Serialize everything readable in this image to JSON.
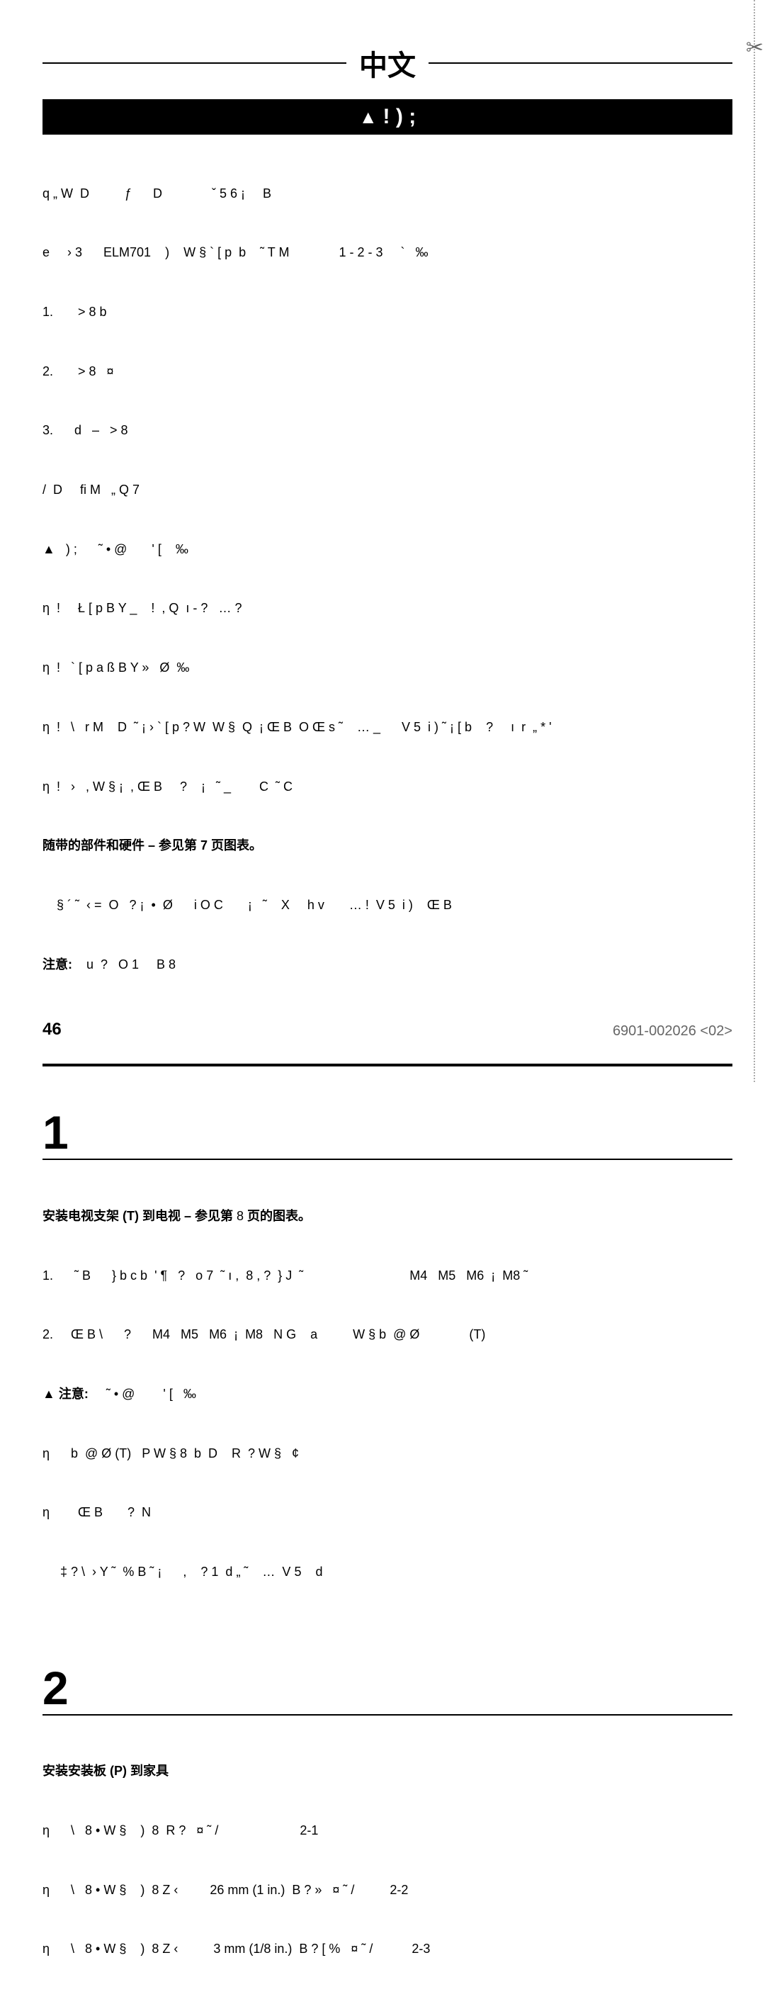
{
  "header": {
    "title": "中文"
  },
  "warningBar": {
    "text": "! ) ;"
  },
  "mainBlock": {
    "line1": "q „ W  D          ƒ      D              ˇ 5 6 ¡     B",
    "line2": "e     › 3      ELM701    )    W § ` [ p  b    ˜ T M              1 - 2 - 3     `   ‰",
    "line3": "1.       > 8 b",
    "line4": "2.       > 8   ¤",
    "line5": "3.      d   –   > 8",
    "line6": "/  D     fi M   „ Q 7",
    "line7": "▲   ) ;      ˜ • @       ' [    ‰",
    "line8": "η  !     Ł [ p B Y _    !  , Q  ı - ?   … ?",
    "line9": "η  !   ` [ p a ß B Y »   Ø  ‰",
    "line10": "η  !   \\   r M    D  ˜ ¡ › ` [ p ? W  W §  Q  ¡ Œ B  O Œ s ˜    … _      V 5  i ) ˜ ¡ [ b    ?     ı  r  „ * '",
    "line11": "η  !   ›   , W § ¡  , Œ B     ?    ¡   ˜ _        C  ˜ C",
    "boldA": "随带的部件和硬件 – 参见第 7 页图表。",
    "line12": "    § ´ ˜  ‹ =  O   ? ¡  •  Ø      i O C       ¡   ˜    X     h v       … !  V 5  i )    Œ B",
    "boldB": "注意:",
    "line13": "    u  ?   O 1     B 8"
  },
  "step1": {
    "num": "1",
    "title": "安装电视支架 (T) 到电视 – 参见第 ",
    "titlePage": "8",
    "titleEnd": " 页的图表。",
    "s1l1": "1.      ˜ B      } b c b  ' ¶   ?   o 7  ˜ ı ,  8 , ?  } J  ˜                              M4   M5   M6  ¡  M8 ˜",
    "s1l2": "2.     Œ B \\      ?      M4   M5   M6  ¡  M8   N G    a          W § b  @ Ø              (T)",
    "cautionBold": "▲ 注意:",
    "s1l3": "     ˜ • @        ' [   ‰",
    "s1l4": "η      b  @ Ø (T)   P W § 8  b  D    R  ? W §   ¢",
    "s1l5": "η        Œ B       ?  N",
    "s1l6": "     ‡ ? \\  › Y ˜  % B ˜ ¡      ,    ? 1  d „ ˜    …  V 5    d"
  },
  "step2": {
    "num": "2",
    "title": "安装安装板 (P) 到家具",
    "s2l1": "η      \\   8 • W §    )  8  R ?   ¤ ˜ /                       2-1",
    "s2l2": "η      \\   8 • W §    )  8 Z ‹         26 mm (1 in.)  B ? »   ¤ ˜ /          2-2",
    "s2l3": "η      \\   8 • W §    )  8 Z ‹          3 mm (1/8 in.)  B ? [ %   ¤ ˜ /           2-3"
  },
  "footer": {
    "pageNum": "46",
    "docNum": "6901-002026 <02>"
  }
}
